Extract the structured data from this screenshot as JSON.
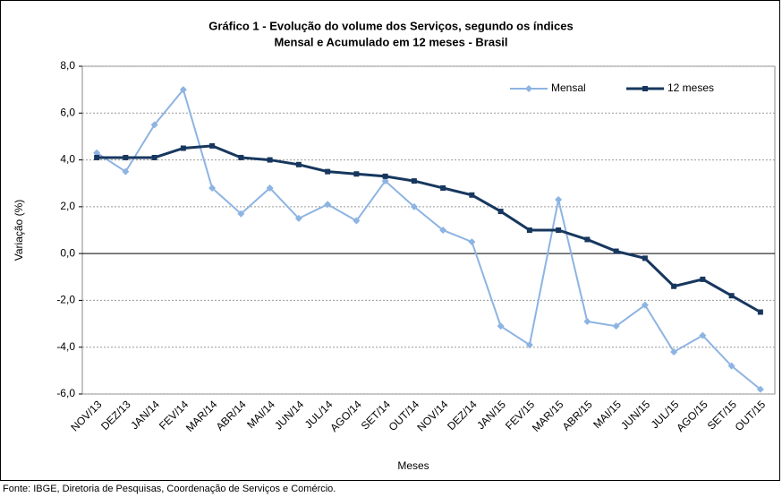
{
  "chart_data": {
    "type": "line",
    "title": [
      "Gráfico 1 - Evolução do volume dos Serviços, segundo os índices",
      "Mensal e Acumulado em 12 meses - Brasil"
    ],
    "x_label": "Meses",
    "y_label": "Variação (%)",
    "source": "Fonte: IBGE, Diretoria de Pesquisas, Coordenação de Serviços e Comércio.",
    "categories": [
      "NOV/13",
      "DEZ/13",
      "JAN/14",
      "FEV/14",
      "MAR/14",
      "ABR/14",
      "MAI/14",
      "JUN/14",
      "JUL/14",
      "AGO/14",
      "SET/14",
      "OUT/14",
      "NOV/14",
      "DEZ/14",
      "JAN/15",
      "FEV/15",
      "MAR/15",
      "ABR/15",
      "MAI/15",
      "JUN/15",
      "JUL/15",
      "AGO/15",
      "SET/15",
      "OUT/15"
    ],
    "series": [
      {
        "name": "Mensal",
        "color": "#8db4e2",
        "marker": "diamond",
        "values": [
          4.3,
          3.5,
          5.5,
          7.0,
          2.8,
          1.7,
          2.8,
          1.5,
          2.1,
          1.4,
          3.1,
          2.0,
          1.0,
          0.5,
          -3.1,
          -3.9,
          2.3,
          -2.9,
          -3.1,
          -2.2,
          -4.2,
          -3.5,
          -4.8,
          -5.8
        ]
      },
      {
        "name": "12 meses",
        "color": "#17375e",
        "marker": "square",
        "values": [
          4.1,
          4.1,
          4.1,
          4.5,
          4.6,
          4.1,
          4.0,
          3.8,
          3.5,
          3.4,
          3.3,
          3.1,
          2.8,
          2.5,
          1.8,
          1.0,
          1.0,
          0.6,
          0.1,
          -0.2,
          -1.4,
          -1.1,
          -1.8,
          -2.5
        ]
      }
    ],
    "ylim": [
      -6,
      8
    ],
    "yticks": [
      {
        "value": -6,
        "label": "-6,0"
      },
      {
        "value": -4,
        "label": "-4,0"
      },
      {
        "value": -2,
        "label": "-2,0"
      },
      {
        "value": 0,
        "label": "0,0"
      },
      {
        "value": 2,
        "label": "2,0"
      },
      {
        "value": 4,
        "label": "4,0"
      },
      {
        "value": 6,
        "label": "6,0"
      },
      {
        "value": 8,
        "label": "8,0"
      }
    ],
    "grid": true,
    "legend": "top-right"
  }
}
